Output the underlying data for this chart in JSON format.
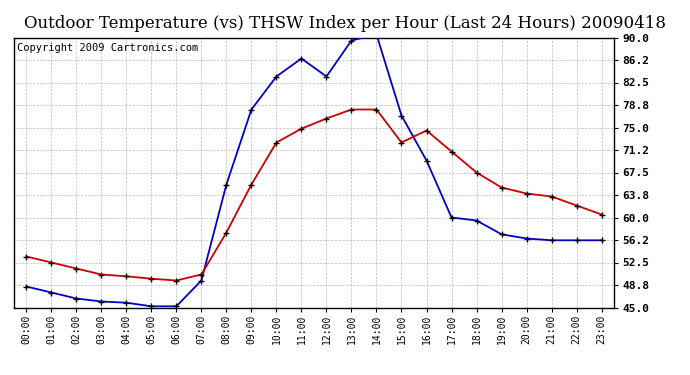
{
  "title": "Outdoor Temperature (vs) THSW Index per Hour (Last 24 Hours) 20090418",
  "copyright": "Copyright 2009 Cartronics.com",
  "hours": [
    0,
    1,
    2,
    3,
    4,
    5,
    6,
    7,
    8,
    9,
    10,
    11,
    12,
    13,
    14,
    15,
    16,
    17,
    18,
    19,
    20,
    21,
    22,
    23
  ],
  "hour_labels": [
    "00:00",
    "01:00",
    "02:00",
    "03:00",
    "04:00",
    "05:00",
    "06:00",
    "07:00",
    "08:00",
    "09:00",
    "10:00",
    "11:00",
    "12:00",
    "13:00",
    "14:00",
    "15:00",
    "16:00",
    "17:00",
    "18:00",
    "19:00",
    "20:00",
    "21:00",
    "22:00",
    "23:00"
  ],
  "temp_red": [
    53.5,
    52.5,
    51.5,
    50.5,
    50.2,
    49.8,
    49.5,
    50.5,
    57.5,
    65.5,
    72.5,
    74.8,
    76.5,
    78.0,
    78.0,
    72.5,
    74.5,
    71.0,
    67.5,
    65.0,
    64.0,
    63.5,
    62.0,
    60.5
  ],
  "thsw_blue": [
    48.5,
    47.5,
    46.5,
    46.0,
    45.8,
    45.2,
    45.2,
    49.5,
    65.5,
    78.0,
    83.5,
    86.5,
    83.5,
    89.5,
    90.5,
    77.0,
    69.5,
    60.0,
    59.5,
    57.2,
    56.5,
    56.2,
    56.2,
    56.2
  ],
  "ylim": [
    45.0,
    90.0
  ],
  "yticks": [
    45.0,
    48.8,
    52.5,
    56.2,
    60.0,
    63.8,
    67.5,
    71.2,
    75.0,
    78.8,
    82.5,
    86.2,
    90.0
  ],
  "red_color": "#cc0000",
  "blue_color": "#0000cc",
  "grid_color": "#aaaaaa",
  "bg_color": "#ffffff",
  "plot_bg": "#ffffff",
  "title_fontsize": 12,
  "copyright_fontsize": 7.5
}
